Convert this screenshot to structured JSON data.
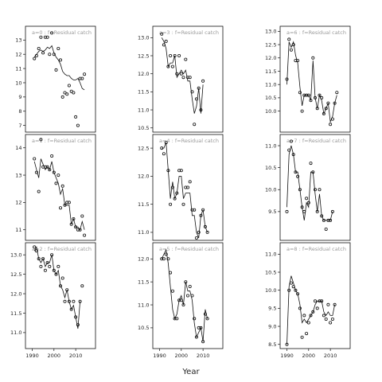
{
  "chart_data": {
    "type": "scatter",
    "xlabel": "Year",
    "x_ticks": [
      1990,
      2000,
      2010
    ],
    "panels": [
      {
        "strip": "a=0  :  f=Residual catch",
        "xlim": [
          1988,
          2018
        ],
        "ylim": [
          6.7,
          13.8
        ],
        "yticks": [
          7,
          8,
          9,
          10,
          11,
          12,
          13
        ],
        "show_xticks": false,
        "x": [
          1991,
          1992,
          1993,
          1994,
          1995,
          1996,
          1997,
          1998,
          1999,
          2000,
          2001,
          2002,
          2003,
          2004,
          2005,
          2006,
          2007,
          2008,
          2009,
          2010,
          2011,
          2012,
          2013,
          2014,
          2015,
          2016
        ],
        "points": [
          11.7,
          11.9,
          12.4,
          13.2,
          12.1,
          13.2,
          13.2,
          12.0,
          13.5,
          12.0,
          10.9,
          12.4,
          11.6,
          9.0,
          9.3,
          9.2,
          9.8,
          9.4,
          9.3,
          7.6,
          7.0,
          10.3,
          10.3,
          10.6,
          null,
          null
        ],
        "fit": [
          11.8,
          12.0,
          12.2,
          12.3,
          12.2,
          12.3,
          12.5,
          12.4,
          12.6,
          12.1,
          11.8,
          11.6,
          11.3,
          10.8,
          10.6,
          10.5,
          10.5,
          10.3,
          10.2,
          10.2,
          10.3,
          10.0,
          9.6,
          9.5,
          null,
          null
        ]
      },
      {
        "strip": "a=3  :  f=Residual catch",
        "xlim": [
          1988,
          2018
        ],
        "ylim": [
          10.45,
          13.25
        ],
        "yticks": [
          10.5,
          11.0,
          11.5,
          12.0,
          12.5,
          13.0
        ],
        "show_xticks": false,
        "x": [
          1991,
          1992,
          1993,
          1994,
          1995,
          1996,
          1997,
          1998,
          1999,
          2000,
          2001,
          2002,
          2003,
          2004,
          2005,
          2006,
          2007,
          2008,
          2009,
          2010,
          2011,
          2012,
          2013,
          2014,
          2015,
          2016
        ],
        "points": [
          13.1,
          12.8,
          12.9,
          12.2,
          12.5,
          12.2,
          12.5,
          12.0,
          12.5,
          12.0,
          11.9,
          12.4,
          11.9,
          11.9,
          11.5,
          10.6,
          11.3,
          11.6,
          11.0,
          11.8,
          null,
          null,
          null,
          null,
          null,
          null
        ],
        "fit": [
          13.0,
          12.9,
          12.7,
          12.2,
          12.3,
          12.3,
          12.5,
          11.9,
          12.0,
          12.1,
          12.0,
          12.1,
          11.8,
          11.8,
          11.3,
          10.9,
          11.1,
          11.6,
          10.9,
          11.7,
          null,
          null,
          null,
          null,
          null,
          null
        ]
      },
      {
        "strip": "a=6  :  f=Residual catch",
        "xlim": [
          1988,
          2018
        ],
        "ylim": [
          9.3,
          13.1
        ],
        "yticks": [
          10.0,
          10.5,
          11.0,
          11.5,
          12.0,
          12.5,
          13.0
        ],
        "show_xticks": false,
        "x": [
          1990,
          1991,
          1992,
          1993,
          1994,
          1995,
          1996,
          1997,
          1998,
          1999,
          2000,
          2001,
          2002,
          2003,
          2004,
          2005,
          2006,
          2007,
          2008,
          2009,
          2010,
          2011,
          2012,
          2013,
          2014,
          2015
        ],
        "points": [
          11.2,
          12.7,
          12.3,
          12.5,
          11.9,
          11.9,
          10.7,
          10.0,
          10.6,
          10.6,
          10.6,
          10.4,
          12.0,
          10.5,
          10.1,
          10.6,
          10.5,
          9.9,
          10.1,
          10.3,
          9.5,
          9.7,
          10.3,
          10.7,
          null,
          null
        ],
        "fit": [
          11.0,
          12.6,
          12.4,
          12.6,
          12.1,
          11.8,
          10.9,
          10.2,
          10.6,
          10.6,
          10.6,
          10.4,
          11.9,
          10.5,
          10.1,
          10.6,
          10.4,
          9.9,
          10.1,
          10.3,
          9.6,
          9.8,
          10.3,
          10.6,
          null,
          null
        ]
      },
      {
        "strip": "a=1  :  f=Residual catch",
        "xlim": [
          1988,
          2018
        ],
        "ylim": [
          10.7,
          14.4
        ],
        "yticks": [
          11.0,
          12.0,
          13.0,
          14.0
        ],
        "show_xticks": false,
        "x": [
          1991,
          1992,
          1993,
          1994,
          1995,
          1996,
          1997,
          1998,
          1999,
          2000,
          2001,
          2002,
          2003,
          2004,
          2005,
          2006,
          2007,
          2008,
          2009,
          2010,
          2011,
          2012,
          2013,
          2014,
          2015,
          2016
        ],
        "points": [
          13.6,
          13.1,
          12.4,
          14.3,
          13.3,
          13.3,
          13.3,
          13.2,
          13.7,
          13.1,
          12.7,
          13.0,
          11.8,
          12.6,
          11.9,
          12.0,
          12.0,
          11.2,
          11.4,
          11.1,
          11.0,
          11.0,
          11.5,
          10.8,
          null,
          null
        ],
        "fit": [
          13.5,
          13.2,
          12.9,
          13.6,
          13.4,
          13.2,
          13.3,
          13.2,
          13.5,
          13.1,
          12.9,
          12.7,
          12.3,
          12.5,
          11.9,
          11.9,
          11.9,
          11.2,
          11.4,
          11.1,
          11.1,
          11.0,
          11.3,
          11.0,
          null,
          null
        ]
      },
      {
        "strip": "a=4  :  f=Residual catch",
        "xlim": [
          1988,
          2018
        ],
        "ylim": [
          10.9,
          12.7
        ],
        "yticks": [
          11.0,
          11.5,
          12.0,
          12.5
        ],
        "show_xticks": false,
        "x": [
          1991,
          1992,
          1993,
          1994,
          1995,
          1996,
          1997,
          1998,
          1999,
          2000,
          2001,
          2002,
          2003,
          2004,
          2005,
          2006,
          2007,
          2008,
          2009,
          2010,
          2011,
          2012,
          2013,
          2014,
          2015,
          2016
        ],
        "points": [
          12.5,
          12.4,
          12.6,
          12.1,
          11.5,
          11.8,
          11.6,
          11.7,
          12.1,
          12.1,
          11.5,
          11.8,
          11.8,
          11.9,
          11.4,
          11.4,
          10.9,
          11.0,
          11.3,
          11.4,
          11.1,
          11.0,
          null,
          null,
          null,
          null
        ],
        "fit": [
          12.5,
          12.5,
          12.6,
          12.1,
          11.6,
          11.9,
          11.6,
          11.7,
          12.0,
          12.0,
          11.6,
          11.7,
          11.7,
          11.7,
          11.3,
          11.3,
          11.0,
          10.9,
          11.3,
          11.4,
          11.1,
          11.0,
          null,
          null,
          null,
          null
        ]
      },
      {
        "strip": "a=7  :  f=Residual catch",
        "xlim": [
          1988,
          2018
        ],
        "ylim": [
          8.9,
          11.2
        ],
        "yticks": [
          9.5,
          10.0,
          10.5,
          11.0
        ],
        "show_xticks": false,
        "x": [
          1990,
          1991,
          1992,
          1993,
          1994,
          1995,
          1996,
          1997,
          1998,
          1999,
          2000,
          2001,
          2002,
          2003,
          2004,
          2005,
          2006,
          2007,
          2008,
          2009,
          2010,
          2011,
          2012,
          2013,
          2014,
          2015
        ],
        "points": [
          9.5,
          10.9,
          11.1,
          10.8,
          10.4,
          10.3,
          10.0,
          9.6,
          9.5,
          9.8,
          9.7,
          10.6,
          10.4,
          10.0,
          9.5,
          10.0,
          9.4,
          9.3,
          9.1,
          9.3,
          9.3,
          9.5,
          null,
          null,
          null,
          null
        ],
        "fit": [
          9.6,
          10.8,
          11.0,
          10.8,
          10.4,
          10.4,
          10.0,
          9.6,
          9.3,
          9.7,
          9.6,
          10.4,
          10.4,
          9.9,
          9.5,
          9.9,
          9.4,
          9.3,
          9.3,
          9.3,
          9.3,
          9.5,
          null,
          null,
          null,
          null
        ]
      },
      {
        "strip": "a=2  :  f=Residual catch",
        "xlim": [
          1988,
          2018
        ],
        "ylim": [
          10.65,
          13.25
        ],
        "yticks": [
          11.0,
          11.5,
          12.0,
          12.5,
          13.0
        ],
        "show_xticks": true,
        "x": [
          1991,
          1992,
          1993,
          1994,
          1995,
          1996,
          1997,
          1998,
          1999,
          2000,
          2001,
          2002,
          2003,
          2004,
          2005,
          2006,
          2007,
          2008,
          2009,
          2010,
          2011,
          2012,
          2013,
          2014,
          2015,
          2016
        ],
        "points": [
          13.2,
          13.1,
          12.9,
          12.7,
          12.9,
          12.6,
          12.8,
          12.7,
          13.0,
          12.6,
          12.5,
          12.7,
          12.2,
          12.4,
          11.8,
          12.1,
          11.8,
          11.6,
          11.8,
          11.4,
          11.2,
          11.8,
          12.2,
          null,
          null,
          null
        ],
        "fit": [
          13.1,
          13.2,
          12.9,
          12.8,
          12.9,
          12.7,
          12.8,
          12.8,
          13.0,
          12.6,
          12.5,
          12.6,
          12.2,
          12.1,
          11.9,
          12.1,
          11.8,
          11.6,
          11.7,
          11.4,
          11.1,
          11.8,
          null,
          null,
          null,
          null
        ]
      },
      {
        "strip": "a=5  :  f=Residual catch",
        "xlim": [
          1988,
          2018
        ],
        "ylim": [
          10.1,
          12.3
        ],
        "yticks": [
          10.5,
          11.0,
          11.5,
          12.0
        ],
        "show_xticks": true,
        "x": [
          1991,
          1992,
          1993,
          1994,
          1995,
          1996,
          1997,
          1998,
          1999,
          2000,
          2001,
          2002,
          2003,
          2004,
          2005,
          2006,
          2007,
          2008,
          2009,
          2010,
          2011,
          2012,
          2013,
          2014,
          2015,
          2016
        ],
        "points": [
          12.0,
          12.0,
          12.1,
          12.0,
          11.7,
          11.3,
          10.7,
          10.7,
          11.1,
          11.1,
          11.0,
          11.5,
          11.2,
          11.4,
          11.2,
          10.7,
          10.3,
          10.5,
          10.5,
          10.2,
          10.8,
          10.7,
          null,
          null,
          null,
          null
        ],
        "fit": [
          12.0,
          12.1,
          12.2,
          11.9,
          11.4,
          10.9,
          10.7,
          10.8,
          11.1,
          11.2,
          11.0,
          11.5,
          11.3,
          11.3,
          11.1,
          10.6,
          10.3,
          10.4,
          10.5,
          10.2,
          10.9,
          10.7,
          null,
          null,
          null,
          null
        ]
      },
      {
        "strip": "a=8  :  f=Residual catch",
        "xlim": [
          1988,
          2018
        ],
        "ylim": [
          8.45,
          11.25
        ],
        "yticks": [
          8.5,
          9.0,
          9.5,
          10.0,
          10.5,
          11.0
        ],
        "show_xticks": true,
        "x": [
          1990,
          1991,
          1992,
          1993,
          1994,
          1995,
          1996,
          1997,
          1998,
          1999,
          2000,
          2001,
          2002,
          2003,
          2004,
          2005,
          2006,
          2007,
          2008,
          2009,
          2010,
          2011,
          2012,
          2013,
          2014,
          2015
        ],
        "points": [
          8.5,
          10.0,
          10.2,
          10.1,
          10.0,
          9.9,
          9.5,
          8.7,
          9.3,
          8.8,
          9.1,
          9.3,
          9.4,
          9.7,
          9.5,
          9.7,
          9.7,
          9.3,
          9.2,
          9.6,
          9.1,
          9.2,
          9.6,
          null,
          null,
          null
        ],
        "fit": [
          8.5,
          10.1,
          10.4,
          10.2,
          10.0,
          9.9,
          9.6,
          9.1,
          9.2,
          9.1,
          9.2,
          9.3,
          9.4,
          9.6,
          9.7,
          9.7,
          9.7,
          9.4,
          9.3,
          9.4,
          9.3,
          9.3,
          9.6,
          null,
          null,
          null
        ]
      }
    ]
  }
}
